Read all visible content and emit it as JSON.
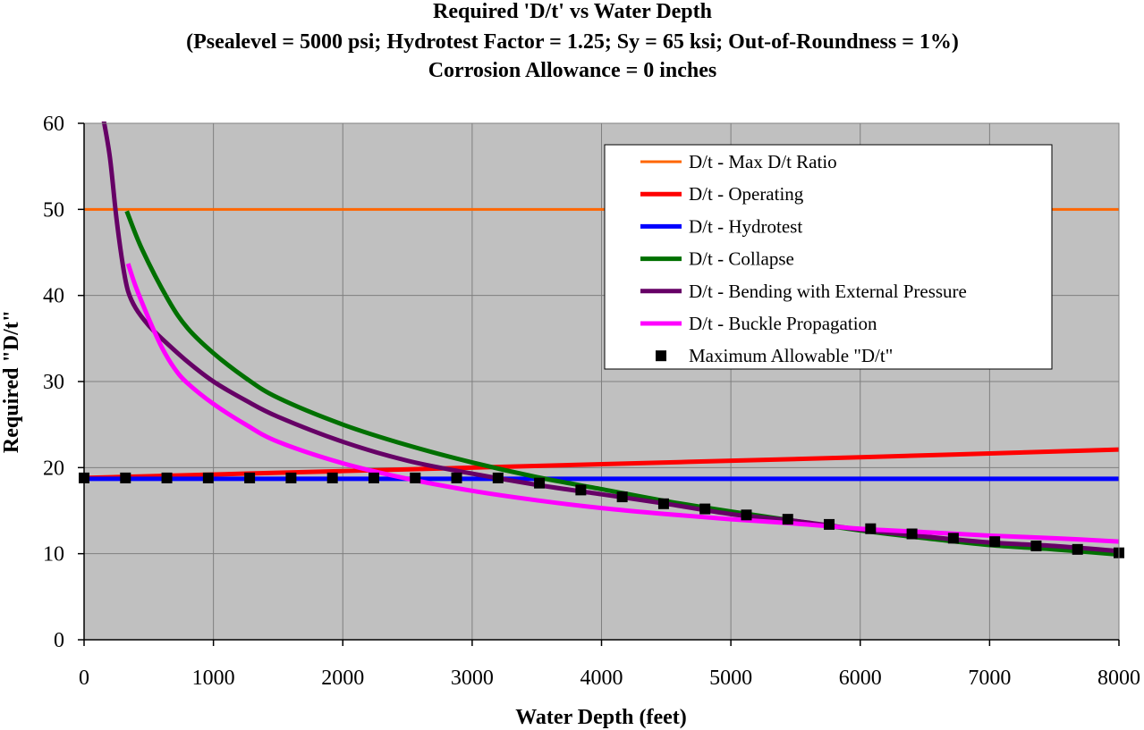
{
  "chart_data": {
    "type": "line",
    "title": [
      "Required 'D/t' vs Water Depth",
      "(Psealevel = 5000 psi; Hydrotest Factor = 1.25; Sy = 65 ksi; Out-of-Roundness = 1%)",
      "Corrosion Allowance = 0 inches"
    ],
    "xlabel": "Water Depth (feet)",
    "ylabel": "Required \"D/t\"",
    "xlim": [
      0,
      8000
    ],
    "ylim": [
      0,
      60
    ],
    "xticks": [
      0,
      1000,
      2000,
      3000,
      4000,
      5000,
      6000,
      7000,
      8000
    ],
    "yticks": [
      0,
      10,
      20,
      30,
      40,
      50,
      60
    ],
    "grid": true,
    "legend_position": "top-right",
    "plot_background": "#c0c0c0",
    "series": [
      {
        "name": "D/t - Max D/t Ratio",
        "color": "#ff6600",
        "width": 3,
        "x": [
          0,
          8000
        ],
        "y": [
          50,
          50
        ]
      },
      {
        "name": "D/t - Operating",
        "color": "#ff0000",
        "width": 5,
        "x": [
          0,
          2000,
          4000,
          6000,
          8000
        ],
        "y": [
          18.8,
          19.6,
          20.4,
          21.2,
          22.1
        ]
      },
      {
        "name": "D/t - Hydrotest",
        "color": "#0000ff",
        "width": 5,
        "x": [
          0,
          8000
        ],
        "y": [
          18.7,
          18.7
        ]
      },
      {
        "name": "D/t - Collapse",
        "color": "#007000",
        "width": 5,
        "x": [
          330,
          450,
          650,
          800,
          1000,
          1250,
          1500,
          2000,
          2500,
          3000,
          3500,
          4000,
          4500,
          5000,
          5500,
          6000,
          6500,
          7000,
          7500,
          8000
        ],
        "y": [
          49.8,
          45.3,
          39.5,
          36.2,
          33.3,
          30.4,
          28.1,
          25.0,
          22.6,
          20.6,
          18.9,
          17.5,
          16.1,
          14.9,
          13.8,
          12.7,
          11.8,
          11.0,
          10.5,
          9.9
        ]
      },
      {
        "name": "D/t - Bending with External Pressure",
        "color": "#660066",
        "width": 5,
        "x": [
          150,
          200,
          250,
          300,
          340,
          400,
          500,
          600,
          800,
          1000,
          1250,
          1500,
          2000,
          2500,
          3000,
          3500,
          4000,
          4500,
          5000,
          5500,
          6000,
          6500,
          7000,
          7500,
          8000
        ],
        "y": [
          60.5,
          56.0,
          49.0,
          43.5,
          40.5,
          38.5,
          36.5,
          35.0,
          32.3,
          30.0,
          27.8,
          25.9,
          23.0,
          20.8,
          19.3,
          18.0,
          16.9,
          15.8,
          14.6,
          13.8,
          12.8,
          12.0,
          11.3,
          10.9,
          10.3
        ]
      },
      {
        "name": "D/t - Buckle Propagation",
        "color": "#ff00ff",
        "width": 5,
        "x": [
          340,
          400,
          500,
          600,
          700,
          800,
          1000,
          1250,
          1500,
          2000,
          2500,
          3000,
          3500,
          4000,
          4500,
          5000,
          5500,
          6000,
          6500,
          7000,
          7500,
          8000
        ],
        "y": [
          43.7,
          41.0,
          37.3,
          34.0,
          31.5,
          29.8,
          27.4,
          25.0,
          23.0,
          20.5,
          18.7,
          17.3,
          16.2,
          15.3,
          14.6,
          14.0,
          13.5,
          12.9,
          12.5,
          12.1,
          11.8,
          11.4
        ]
      },
      {
        "name": "Maximum Allowable \"D/t\"",
        "color": "#000000",
        "marker": "square",
        "x": [
          0,
          320,
          640,
          960,
          1280,
          1600,
          1920,
          2240,
          2560,
          2880,
          3200,
          3520,
          3840,
          4160,
          4480,
          4800,
          5120,
          5440,
          5760,
          6080,
          6400,
          6720,
          7040,
          7360,
          7680,
          8000
        ],
        "y": [
          18.8,
          18.8,
          18.8,
          18.8,
          18.8,
          18.8,
          18.8,
          18.8,
          18.8,
          18.8,
          18.8,
          18.2,
          17.4,
          16.6,
          15.8,
          15.2,
          14.5,
          14.0,
          13.4,
          12.9,
          12.3,
          11.8,
          11.4,
          10.9,
          10.5,
          10.1
        ]
      }
    ]
  }
}
